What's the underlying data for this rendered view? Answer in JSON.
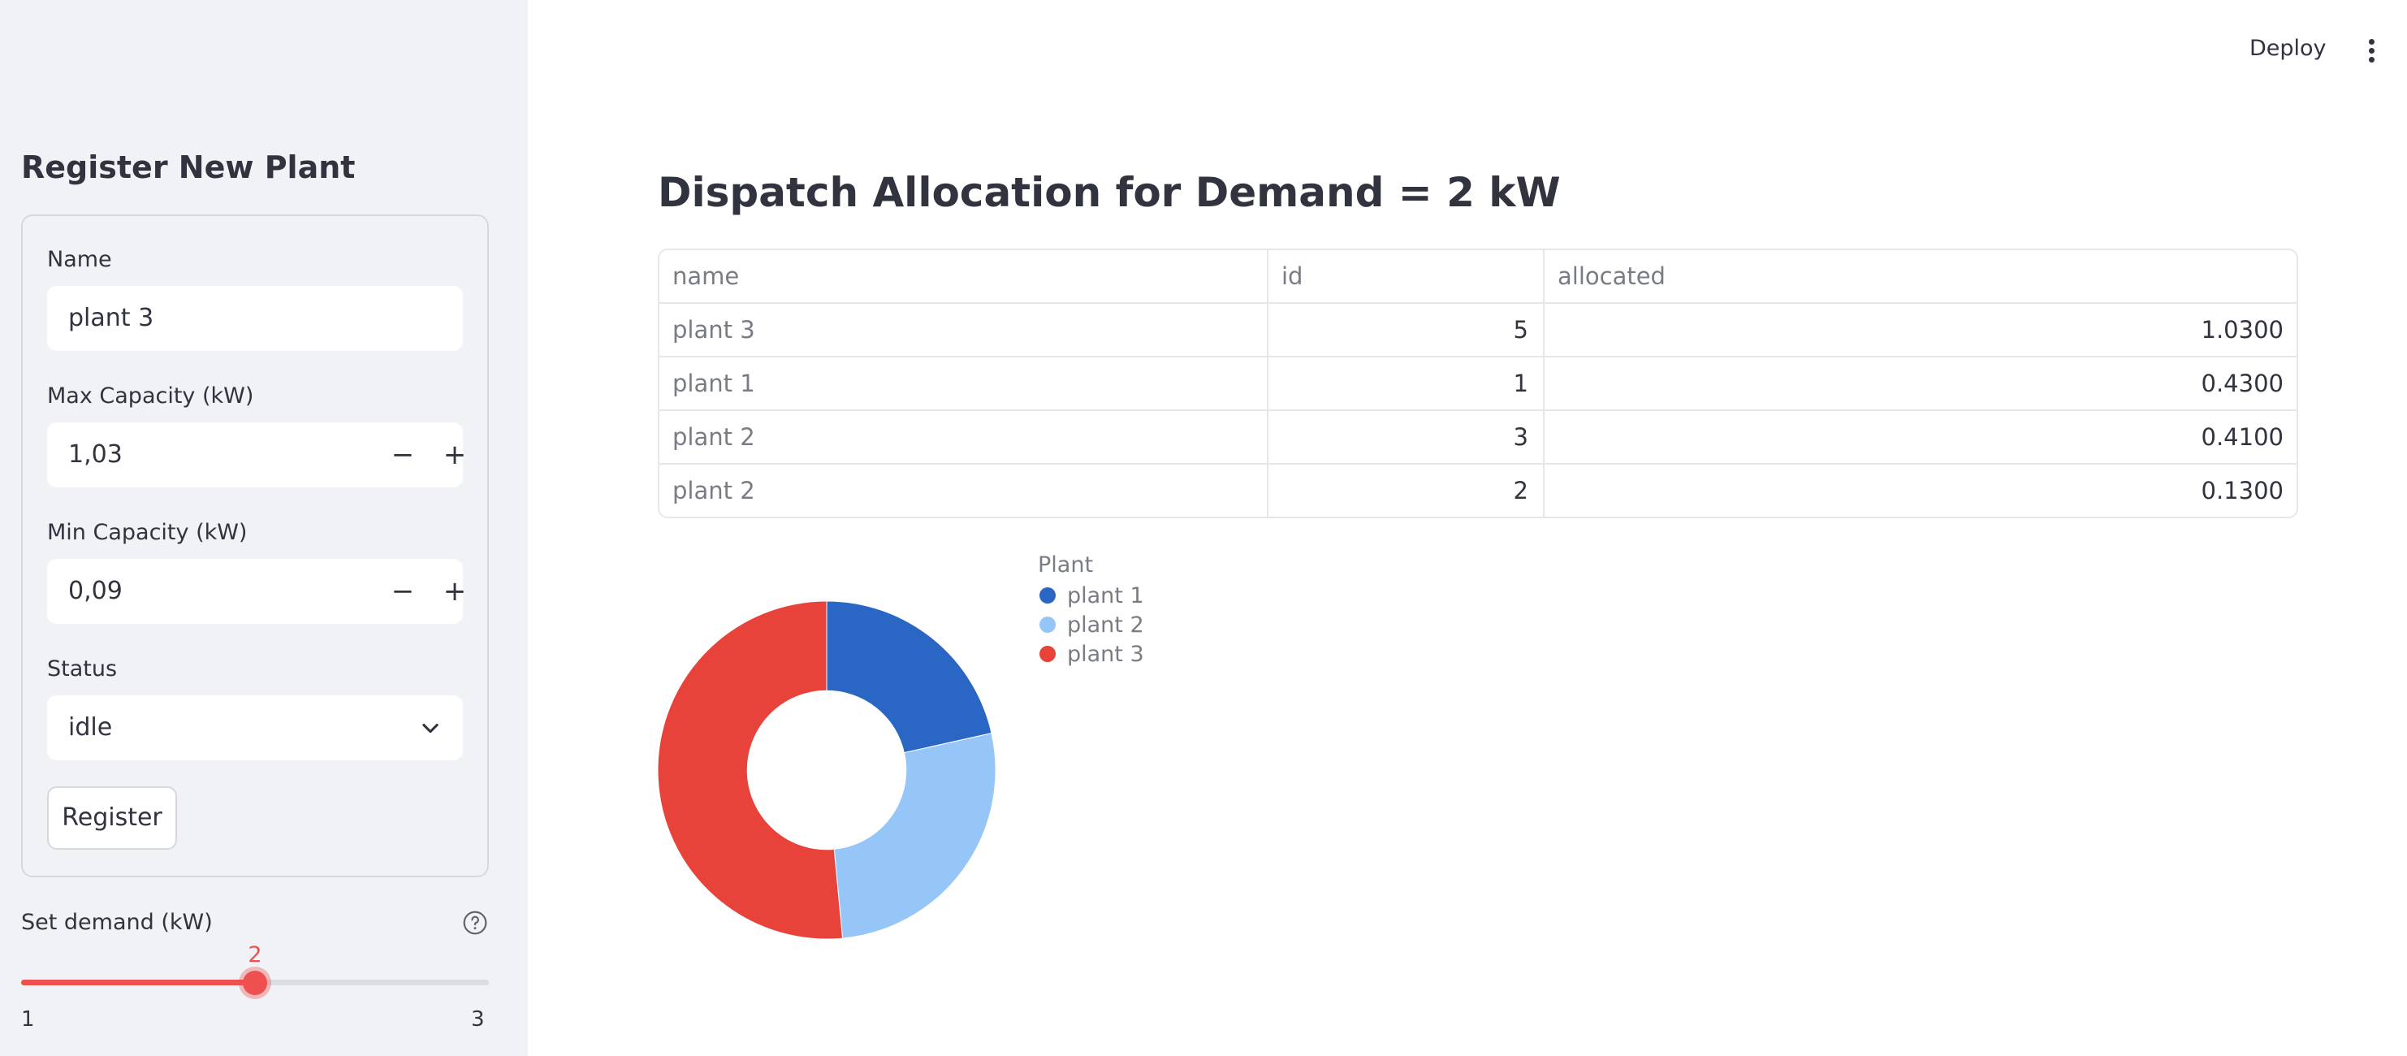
{
  "sidebar": {
    "title": "Register New Plant",
    "name_label": "Name",
    "name_value": "plant 3",
    "max_label": "Max Capacity (kW)",
    "max_value": "1,03",
    "min_label": "Min Capacity (kW)",
    "min_value": "0,09",
    "status_label": "Status",
    "status_value": "idle",
    "register_label": "Register",
    "stepper_minus": "−",
    "stepper_plus": "+",
    "demand_label": "Set demand (kW)",
    "demand_value": "2",
    "demand_min": "1",
    "demand_max": "3",
    "demand_fraction": 0.5
  },
  "header": {
    "deploy_label": "Deploy"
  },
  "main": {
    "title": "Dispatch Allocation for Demand = 2 kW",
    "table": {
      "columns": [
        "name",
        "id",
        "allocated"
      ],
      "rows": [
        [
          "plant 3",
          "5",
          "1.0300"
        ],
        [
          "plant 1",
          "1",
          "0.4300"
        ],
        [
          "plant 2",
          "3",
          "0.4100"
        ],
        [
          "plant 2",
          "2",
          "0.1300"
        ]
      ]
    }
  },
  "chart_data": {
    "type": "pie",
    "hole": 0.47,
    "legend_title": "Plant",
    "legend_position": "top-right",
    "labels": [
      "plant 1",
      "plant 2",
      "plant 3"
    ],
    "values": [
      0.43,
      0.54,
      1.03
    ],
    "colors": [
      "#2a66c4",
      "#96c5f7",
      "#e8433a"
    ]
  }
}
